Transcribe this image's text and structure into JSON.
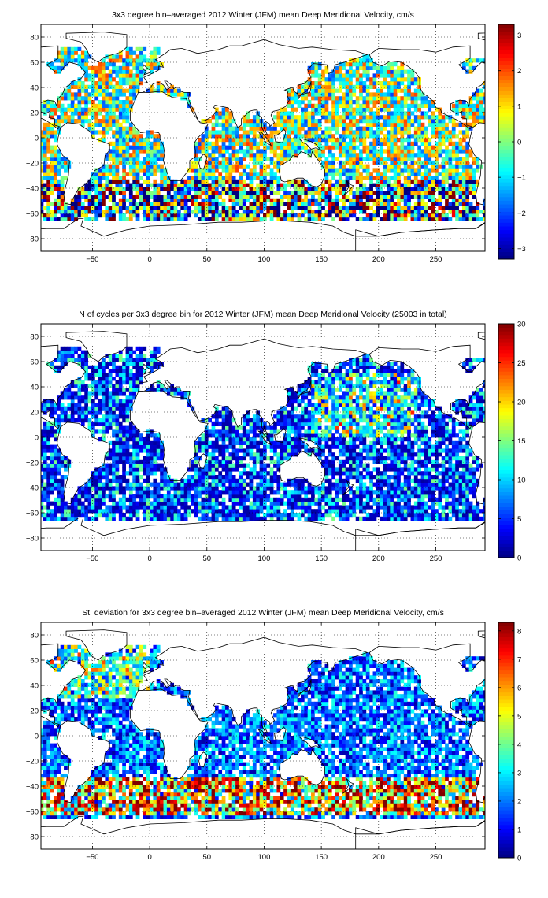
{
  "figure": {
    "colormap": "jet",
    "land_color": "#ffffff",
    "coastline_color": "#000000",
    "grid": "dotted"
  },
  "chart_data": [
    {
      "type": "heatmap",
      "title": "3x3 degree bin–averaged 2012 Winter (JFM) mean Deep Meridional Velocity, cm/s",
      "xlabel": "",
      "ylabel": "",
      "xlim": [
        -95,
        293
      ],
      "ylim": [
        -90,
        90
      ],
      "x_ticks": [
        -50,
        0,
        50,
        100,
        150,
        200,
        250
      ],
      "y_ticks": [
        -80,
        -60,
        -40,
        -20,
        0,
        20,
        40,
        60,
        80
      ],
      "x_tick_labels": [
        "−50",
        "0",
        "50",
        "100",
        "150",
        "200",
        "250"
      ],
      "y_tick_labels": [
        "−80",
        "−60",
        "−40",
        "−20",
        "0",
        "20",
        "40",
        "60",
        "80"
      ],
      "bin_size_deg": 3,
      "colorbar": {
        "min": -3.3,
        "max": 3.3,
        "ticks": [
          -3,
          -2,
          -1,
          0,
          1,
          2,
          3
        ],
        "tick_labels": [
          "−3",
          "−2",
          "−1",
          "0",
          "1",
          "2",
          "3"
        ]
      },
      "field": "meridional_velocity_mean",
      "value_range_cm_s": [
        -3.3,
        3.3
      ]
    },
    {
      "type": "heatmap",
      "title": "N of cycles per 3x3 degree bin for 2012 Winter (JFM) mean Deep Meridional Velocity (25003 in total)",
      "xlabel": "",
      "ylabel": "",
      "xlim": [
        -95,
        293
      ],
      "ylim": [
        -90,
        90
      ],
      "x_ticks": [
        -50,
        0,
        50,
        100,
        150,
        200,
        250
      ],
      "y_ticks": [
        -80,
        -60,
        -40,
        -20,
        0,
        20,
        40,
        60,
        80
      ],
      "x_tick_labels": [
        "−50",
        "0",
        "50",
        "100",
        "150",
        "200",
        "250"
      ],
      "y_tick_labels": [
        "−80",
        "−60",
        "−40",
        "−20",
        "0",
        "20",
        "40",
        "60",
        "80"
      ],
      "bin_size_deg": 3,
      "colorbar": {
        "min": 0,
        "max": 30,
        "ticks": [
          0,
          5,
          10,
          15,
          20,
          25,
          30
        ],
        "tick_labels": [
          "0",
          "5",
          "10",
          "15",
          "20",
          "25",
          "30"
        ]
      },
      "field": "cycle_count",
      "total_cycles": 25003,
      "value_range": [
        0,
        30
      ]
    },
    {
      "type": "heatmap",
      "title": "St. deviation for 3x3 degree bin–averaged 2012 Winter (JFM) mean Deep Meridional Velocity, cm/s",
      "xlabel": "",
      "ylabel": "",
      "xlim": [
        -95,
        293
      ],
      "ylim": [
        -90,
        90
      ],
      "x_ticks": [
        -50,
        0,
        50,
        100,
        150,
        200,
        250
      ],
      "y_ticks": [
        -80,
        -60,
        -40,
        -20,
        0,
        20,
        40,
        60,
        80
      ],
      "x_tick_labels": [
        "−50",
        "0",
        "50",
        "100",
        "150",
        "200",
        "250"
      ],
      "y_tick_labels": [
        "−80",
        "−60",
        "−40",
        "−20",
        "0",
        "20",
        "40",
        "60",
        "80"
      ],
      "bin_size_deg": 3,
      "colorbar": {
        "min": 0,
        "max": 8.3,
        "ticks": [
          0,
          1,
          2,
          3,
          4,
          5,
          6,
          7,
          8
        ],
        "tick_labels": [
          "0",
          "1",
          "2",
          "3",
          "4",
          "5",
          "6",
          "7",
          "8"
        ]
      },
      "field": "meridional_velocity_std",
      "value_range_cm_s": [
        0,
        8.3
      ]
    }
  ]
}
